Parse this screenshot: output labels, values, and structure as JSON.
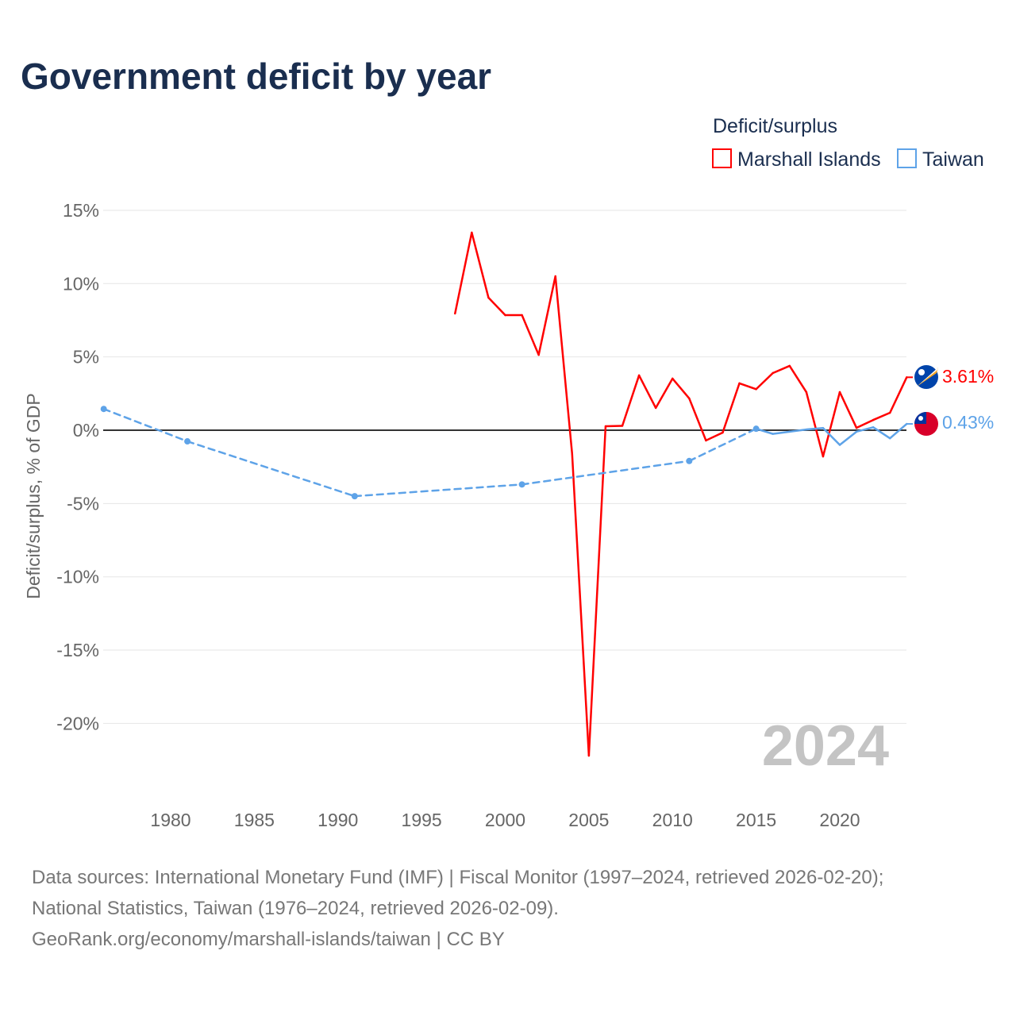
{
  "chart_data": {
    "type": "line",
    "title": "Government deficit by year",
    "ylabel": "Deficit/surplus, % of GDP",
    "xlabel": "",
    "ylim": [
      -22.5,
      15.5
    ],
    "xlim": [
      1976,
      2024
    ],
    "yticks": [
      15,
      10,
      5,
      0,
      -5,
      -10,
      -15,
      -20
    ],
    "ytick_labels": [
      "15%",
      "10%",
      "5%",
      "0%",
      "-5%",
      "-10%",
      "-15%",
      "-20%"
    ],
    "xticks": [
      1980,
      1985,
      1990,
      1995,
      2000,
      2005,
      2010,
      2015,
      2020
    ],
    "xtick_labels": [
      "1980",
      "1985",
      "1990",
      "1995",
      "2000",
      "2005",
      "2010",
      "2015",
      "2020"
    ],
    "legend_title": "Deficit/surplus",
    "legend_position": "top-right",
    "year_label": "2024",
    "series": [
      {
        "name": "Marshall Islands",
        "color": "#ff0000",
        "end_label": "3.61%",
        "x": [
          1997,
          1998,
          1999,
          2000,
          2001,
          2002,
          2003,
          2004,
          2005,
          2006,
          2007,
          2008,
          2009,
          2010,
          2011,
          2012,
          2013,
          2014,
          2015,
          2016,
          2017,
          2018,
          2019,
          2020,
          2021,
          2022,
          2023,
          2024
        ],
        "y": [
          7.96,
          13.48,
          9.04,
          7.85,
          7.85,
          5.14,
          10.5,
          -1.62,
          -22.2,
          0.27,
          0.3,
          3.74,
          1.52,
          3.52,
          2.17,
          -0.7,
          -0.16,
          3.2,
          2.8,
          3.9,
          4.39,
          2.6,
          -1.79,
          2.6,
          0.16,
          0.7,
          1.19,
          3.61
        ]
      },
      {
        "name": "Taiwan",
        "color": "#5ea3e8",
        "end_label": "0.43%",
        "x": [
          1976,
          1981,
          1991,
          2001,
          2011,
          2015,
          2016,
          2017,
          2018,
          2019,
          2020,
          2021,
          2022,
          2023,
          2024
        ],
        "y": [
          1.45,
          -0.76,
          -4.5,
          -3.7,
          -2.1,
          0.1,
          -0.25,
          -0.1,
          0.05,
          0.15,
          -1.0,
          -0.1,
          0.2,
          -0.55,
          0.43
        ]
      }
    ]
  },
  "footer": {
    "line1": "Data sources: International Monetary Fund (IMF) | Fiscal Monitor (1997–2024, retrieved 2026-02-20);",
    "line2": "National Statistics, Taiwan (1976–2024, retrieved 2026-02-09).",
    "line3": "GeoRank.org/economy/marshall-islands/taiwan | CC BY"
  }
}
